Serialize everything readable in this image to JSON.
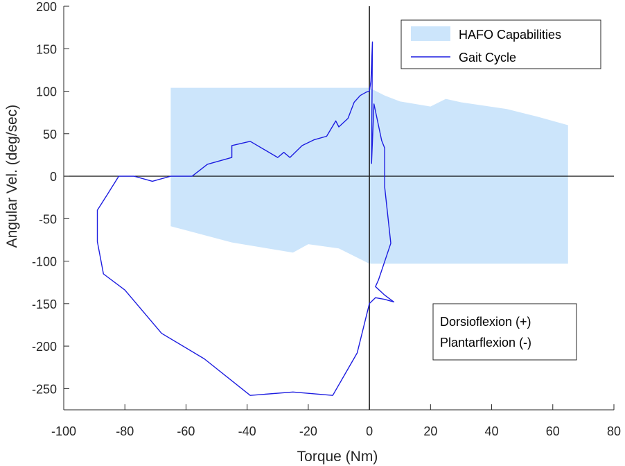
{
  "chart_data": {
    "type": "line",
    "title": "",
    "xlabel": "Torque (Nm)",
    "ylabel": "Angular Vel. (deg/sec)",
    "xlim": [
      -100,
      80
    ],
    "ylim": [
      -275,
      200
    ],
    "xticks": [
      -100,
      -80,
      -60,
      -40,
      -20,
      0,
      20,
      40,
      60,
      80
    ],
    "yticks": [
      -250,
      -200,
      -150,
      -100,
      -50,
      0,
      50,
      100,
      150,
      200
    ],
    "grid": false,
    "legend_position": "top-right",
    "series": [
      {
        "name": "HAFO Capabilities",
        "kind": "area",
        "color": "#cce5fb",
        "upper": {
          "x": [
            -65,
            0,
            5,
            10,
            20,
            25,
            30,
            45,
            55,
            65
          ],
          "y": [
            104,
            104,
            95,
            88,
            82,
            91,
            87,
            79,
            70,
            60
          ]
        },
        "lower": {
          "x": [
            -65,
            -45,
            -25,
            -20,
            -10,
            0,
            65
          ],
          "y": [
            -59,
            -78,
            -90,
            -80,
            -85,
            -103,
            -103
          ]
        }
      },
      {
        "name": "Gait Cycle",
        "kind": "line",
        "color": "#1c1ce0",
        "x": [
          -58,
          -53,
          -45,
          -45,
          -39,
          -30,
          -28,
          -26,
          -22,
          -18,
          -14,
          -11,
          -10,
          -7,
          -5,
          -3,
          -1,
          0,
          0.5,
          1,
          0.7,
          1.5,
          4,
          5,
          5,
          7,
          3,
          2,
          5,
          8,
          5,
          2,
          0,
          -4,
          -12,
          -25,
          -39,
          -54,
          -68,
          -80,
          -87,
          -89,
          -89,
          -86,
          -82,
          -77,
          -71,
          -65,
          -58
        ],
        "y": [
          0,
          14,
          22,
          36,
          41,
          22,
          28,
          22,
          36,
          43,
          47,
          65,
          58,
          68,
          87,
          95,
          99,
          100,
          112,
          158,
          15,
          85,
          42,
          33,
          -13,
          -79,
          -122,
          -130,
          -140,
          -148,
          -145,
          -143,
          -150,
          -208,
          -258,
          -254,
          -258,
          -215,
          -185,
          -134,
          -115,
          -77,
          -40,
          -23,
          0,
          0,
          -6,
          0,
          0
        ]
      }
    ],
    "reference_lines": [
      {
        "axis": "y",
        "value": 0
      },
      {
        "axis": "x",
        "value": 0
      }
    ],
    "annotation": {
      "line1": "Dorsioflexion (+)",
      "line2": "Plantarflexion (-)"
    }
  }
}
